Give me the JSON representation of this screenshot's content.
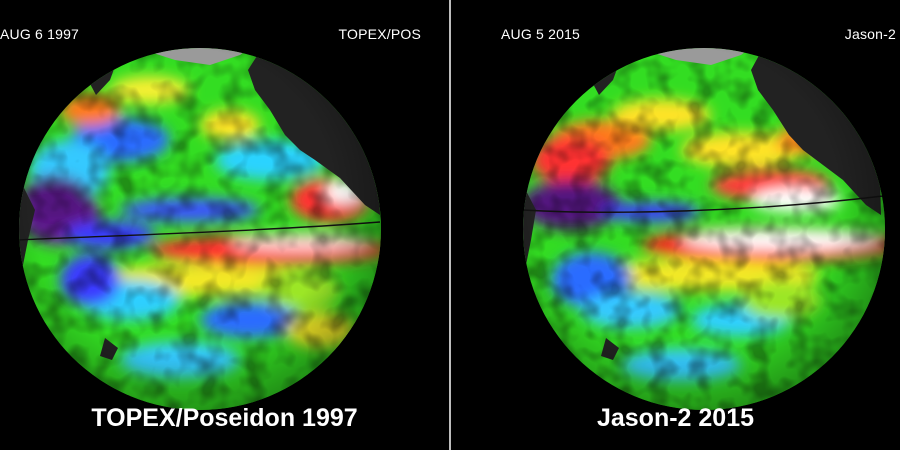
{
  "colors": {
    "background": "#000000",
    "ocean_base": "#33dd22",
    "land": "#222222",
    "ice": "#9a9a9a",
    "divider": "#bdbdbd",
    "text": "#ffffff"
  },
  "panels": [
    {
      "date_label": "AUG  6  1997",
      "satellite_label": "TOPEX/POS",
      "caption": "TOPEX/Poseidon 1997"
    },
    {
      "date_label": "AUG  5  2015",
      "satellite_label": "Jason-2",
      "caption": "Jason-2 2015"
    }
  ]
}
